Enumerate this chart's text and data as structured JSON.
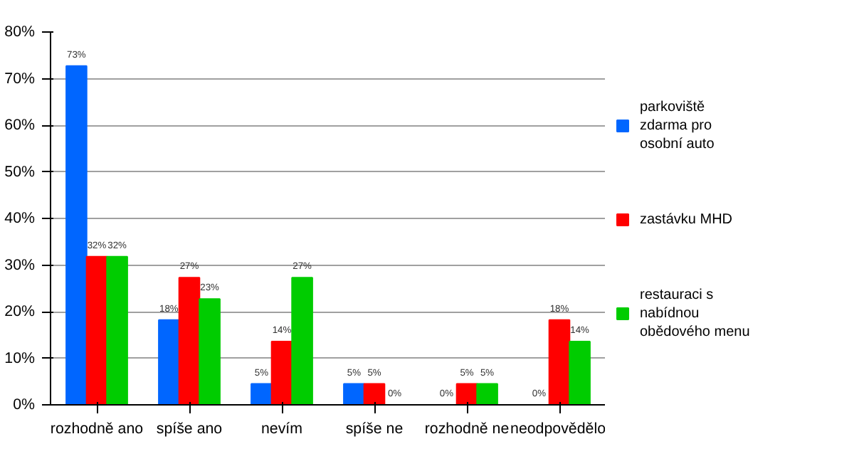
{
  "chart_data": {
    "type": "bar",
    "categories": [
      "rozhodně ano",
      "spíše ano",
      "nevím",
      "spíše ne",
      "rozhodně ne",
      "neodpovědělo"
    ],
    "series": [
      {
        "name": "parkoviště zdarma pro osobní auto",
        "color": "#0066ff",
        "values": [
          72.7,
          18.2,
          4.5,
          4.5,
          0,
          0
        ],
        "value_labels": [
          "73%",
          "18%",
          "5%",
          "5%",
          "0%",
          "0%"
        ]
      },
      {
        "name": "zastávku MHD",
        "color": "#ff0000",
        "values": [
          31.8,
          27.3,
          13.6,
          4.5,
          4.5,
          18.2
        ],
        "value_labels": [
          "32%",
          "27%",
          "14%",
          "5%",
          "5%",
          "18%"
        ]
      },
      {
        "name": "restauraci s nabídnou obědového menu",
        "color": "#00cc00",
        "values": [
          31.8,
          22.7,
          27.3,
          0,
          4.5,
          13.6
        ],
        "value_labels": [
          "32%",
          "23%",
          "27%",
          "0%",
          "5%",
          "14%"
        ]
      }
    ],
    "ylim": [
      0,
      80
    ],
    "yticks": [
      {
        "value": 0,
        "label": "0%"
      },
      {
        "value": 10,
        "label": "10%"
      },
      {
        "value": 20,
        "label": "20%"
      },
      {
        "value": 30,
        "label": "30%"
      },
      {
        "value": 40,
        "label": "40%"
      },
      {
        "value": 50,
        "label": "50%"
      },
      {
        "value": 60,
        "label": "60%"
      },
      {
        "value": 70,
        "label": "70%"
      },
      {
        "value": 80,
        "label": "80%"
      }
    ],
    "grid": "y",
    "legend": "right"
  }
}
